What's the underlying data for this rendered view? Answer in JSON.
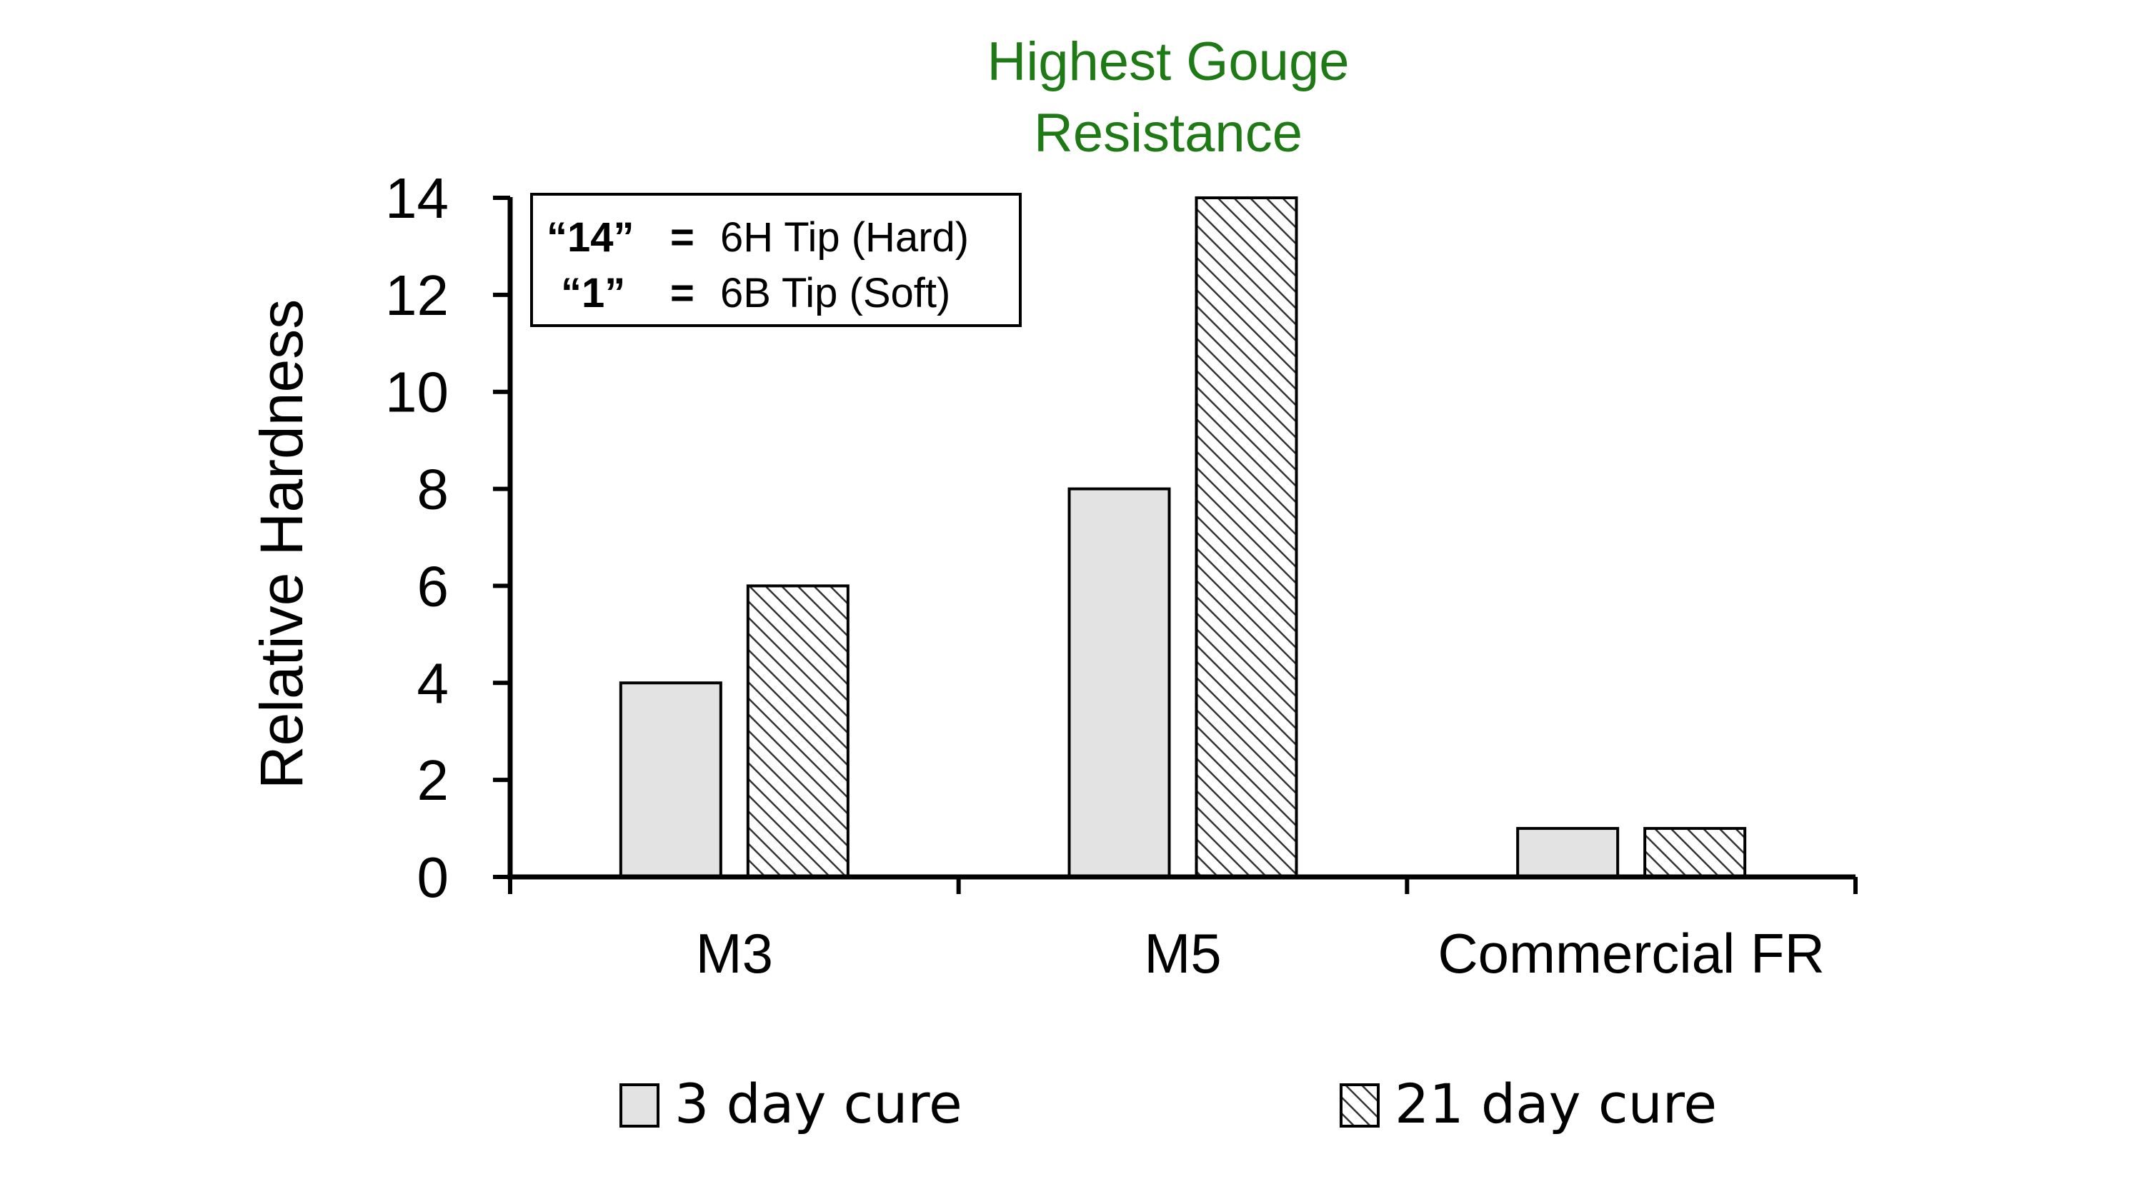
{
  "chart_data": {
    "type": "bar",
    "categories": [
      "M3",
      "M5",
      "Commercial FR"
    ],
    "series": [
      {
        "name": "3 day cure",
        "values": [
          4,
          8,
          1
        ],
        "pattern": "solid",
        "color": "#e3e3e3"
      },
      {
        "name": "21 day cure",
        "values": [
          6,
          14,
          1
        ],
        "pattern": "hatched",
        "color": "#ffffff"
      }
    ],
    "ylabel": "Relative Hardness",
    "xlabel": "",
    "ylim": [
      0,
      14
    ],
    "yticks": [
      "0",
      "2",
      "4",
      "6",
      "8",
      "10",
      "12",
      "14"
    ],
    "grid": false,
    "legend_position": "bottom",
    "annotation": {
      "lines": [
        "Highest Gouge",
        "Resistance"
      ],
      "color": "#1e7a14",
      "target_category": "M5"
    },
    "note_box": {
      "rows": [
        {
          "value": "“14”",
          "eq": "=",
          "meaning": "6H Tip (Hard)"
        },
        {
          "value": "“1”",
          "eq": "=",
          "meaning": "6B Tip (Soft)"
        }
      ]
    }
  }
}
